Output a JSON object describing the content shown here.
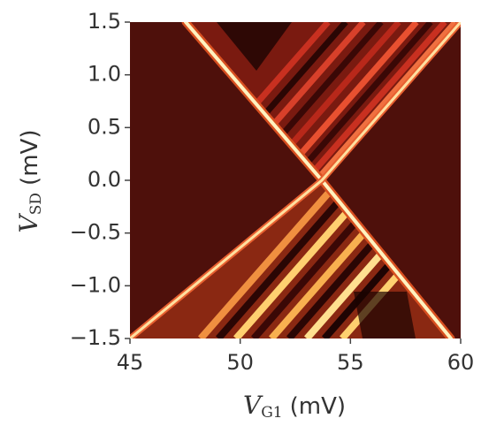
{
  "chart_data": {
    "type": "heatmap",
    "xlabel": {
      "symbol": "V",
      "subscript": "G1",
      "unit": "(mV)"
    },
    "ylabel": {
      "symbol": "V",
      "subscript": "SD",
      "unit": "(mV)"
    },
    "xlim": [
      45,
      60
    ],
    "xticks": [
      45,
      50,
      55,
      60
    ],
    "ylim": [
      -1.5,
      1.5
    ],
    "yticks": [
      1.5,
      {
        "value": 1,
        "label": "1.0"
      },
      0.5,
      {
        "value": 0,
        "label": "0.0"
      },
      {
        "value": -0.5,
        "label": "−0.5"
      },
      {
        "value": -1,
        "label": "−1.0"
      },
      {
        "value": -1.5,
        "label": "−1.5"
      }
    ]
  }
}
